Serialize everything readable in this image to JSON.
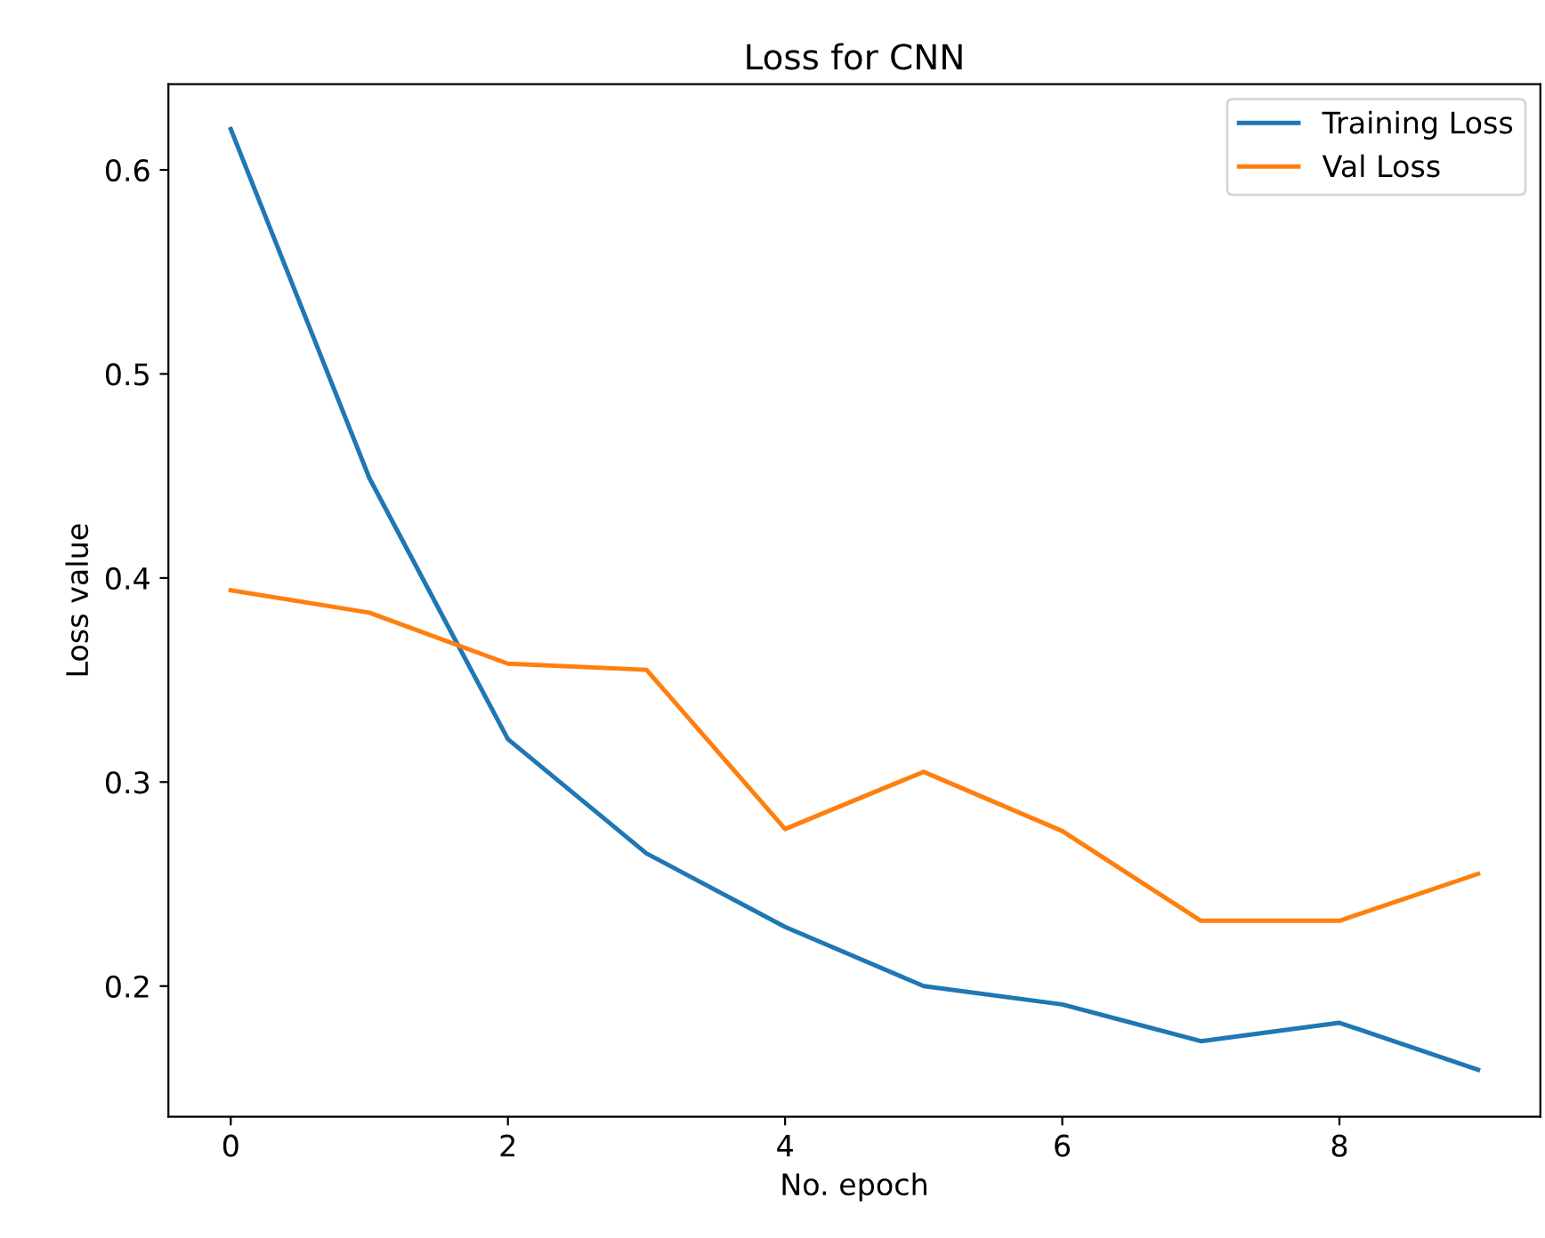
{
  "chart_data": {
    "type": "line",
    "title": "Loss for CNN",
    "xlabel": "No. epoch",
    "ylabel": "Loss value",
    "x": [
      0,
      1,
      2,
      3,
      4,
      5,
      6,
      7,
      8,
      9
    ],
    "series": [
      {
        "name": "Training Loss",
        "color": "#1f77b4",
        "values": [
          0.62,
          0.449,
          0.321,
          0.265,
          0.229,
          0.2,
          0.191,
          0.173,
          0.182,
          0.159
        ]
      },
      {
        "name": "Val Loss",
        "color": "#ff7f0e",
        "values": [
          0.394,
          0.383,
          0.358,
          0.355,
          0.277,
          0.305,
          0.276,
          0.232,
          0.232,
          0.255
        ]
      }
    ],
    "xlim": [
      -0.45,
      9.45
    ],
    "xticks": [
      0,
      2,
      4,
      6,
      8
    ],
    "ylim": [
      0.136,
      0.642
    ],
    "yticks": [
      0.2,
      0.3,
      0.4,
      0.5,
      0.6
    ],
    "grid": false,
    "legend": "top right",
    "marker": "none",
    "line_style": "solid"
  }
}
